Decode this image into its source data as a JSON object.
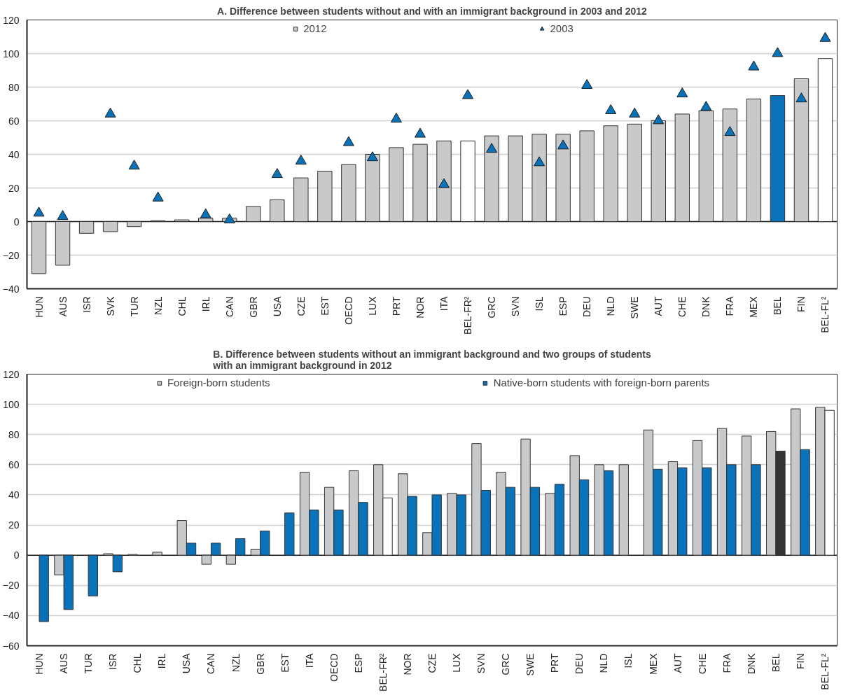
{
  "chart_data": [
    {
      "type": "bar",
      "title": "A. Difference between students without and with an immigrant background in 2003 and 2012",
      "categories": [
        "HUN",
        "AUS",
        "ISR",
        "SVK",
        "TUR",
        "NZL",
        "CHL",
        "IRL",
        "CAN",
        "GBR",
        "USA",
        "CZE",
        "EST",
        "OECD",
        "LUX",
        "PRT",
        "NOR",
        "ITA",
        "BEL-FR²",
        "GRC",
        "SVN",
        "ISL",
        "ESP",
        "DEU",
        "NLD",
        "SWE",
        "AUT",
        "CHE",
        "DNK",
        "FRA",
        "MEX",
        "BEL",
        "FIN",
        "BEL-FL²"
      ],
      "series": [
        {
          "name": "2012",
          "color": "#c8c9cb",
          "colors": [
            "#c8c9cb",
            "#c8c9cb",
            "#c8c9cb",
            "#c8c9cb",
            "#c8c9cb",
            "#c8c9cb",
            "#c8c9cb",
            "#c8c9cb",
            "#c8c9cb",
            "#c8c9cb",
            "#c8c9cb",
            "#c8c9cb",
            "#c8c9cb",
            "#c8c9cb",
            "#c8c9cb",
            "#c8c9cb",
            "#c8c9cb",
            "#c8c9cb",
            "#ffffff",
            "#c8c9cb",
            "#c8c9cb",
            "#c8c9cb",
            "#c8c9cb",
            "#c8c9cb",
            "#c8c9cb",
            "#c8c9cb",
            "#c8c9cb",
            "#c8c9cb",
            "#c8c9cb",
            "#c8c9cb",
            "#c8c9cb",
            "#0a72b8",
            "#c8c9cb",
            "#ffffff"
          ],
          "values": [
            -31,
            -26,
            -7,
            -6,
            -3,
            0.5,
            1,
            2,
            2,
            9,
            13,
            26,
            30,
            34,
            40,
            44,
            46,
            48,
            48,
            51,
            51,
            52,
            52,
            54,
            57,
            58,
            60,
            64,
            66,
            67,
            73,
            75,
            85,
            97
          ]
        },
        {
          "name": "2003",
          "type": "scatter",
          "marker": "triangle",
          "color": "#0a72b8",
          "values": [
            5,
            3,
            null,
            64,
            33,
            14,
            null,
            4,
            1,
            null,
            28,
            36,
            null,
            47,
            38,
            61,
            52,
            22,
            75,
            43,
            null,
            35,
            45,
            81,
            66,
            64,
            60,
            76,
            68,
            53,
            92,
            100,
            73,
            109
          ]
        }
      ],
      "ylim": [
        -40,
        120
      ],
      "yticks": [
        -40,
        -20,
        0,
        20,
        40,
        60,
        80,
        100,
        120
      ],
      "grid": "y",
      "legend": "top"
    },
    {
      "type": "bar",
      "title": "B. Difference between students without an immigrant background and two groups of students\nwith an immigrant background in 2012",
      "categories": [
        "HUN",
        "AUS",
        "TUR",
        "ISR",
        "CHL",
        "IRL",
        "USA",
        "CAN",
        "NZL",
        "GBR",
        "EST",
        "ITA",
        "OECD",
        "ESP",
        "BEL-FR²",
        "NOR",
        "CZE",
        "LUX",
        "SVN",
        "GRC",
        "SWE",
        "PRT",
        "DEU",
        "NLD",
        "ISL",
        "MEX",
        "AUT",
        "CHE",
        "FRA",
        "DNK",
        "BEL",
        "FIN",
        "BEL-FL²"
      ],
      "series": [
        {
          "name": "Foreign-born students",
          "color": "#c8c9cb",
          "values": [
            null,
            -13,
            null,
            1,
            0.5,
            2,
            23,
            -6,
            -6,
            4,
            null,
            55,
            45,
            56,
            60,
            54,
            15,
            41,
            74,
            55,
            77,
            41,
            66,
            60,
            60,
            83,
            62,
            76,
            84,
            79,
            82,
            97,
            98
          ]
        },
        {
          "name": "Native-born students with foreign-born parents",
          "color": "#0a72b8",
          "colors": [
            "#0a72b8",
            "#0a72b8",
            "#0a72b8",
            "#0a72b8",
            "#0a72b8",
            "#0a72b8",
            "#0a72b8",
            "#0a72b8",
            "#0a72b8",
            "#0a72b8",
            "#0a72b8",
            "#0a72b8",
            "#0a72b8",
            "#0a72b8",
            "#ffffff",
            "#0a72b8",
            "#0a72b8",
            "#0a72b8",
            "#0a72b8",
            "#0a72b8",
            "#0a72b8",
            "#0a72b8",
            "#0a72b8",
            "#0a72b8",
            "#0a72b8",
            "#0a72b8",
            "#0a72b8",
            "#0a72b8",
            "#0a72b8",
            "#0a72b8",
            "#333333",
            "#0a72b8",
            "#ffffff"
          ],
          "values": [
            -44,
            -36,
            -27,
            -11,
            null,
            null,
            8,
            8,
            11,
            16,
            28,
            30,
            30,
            35,
            38,
            39,
            40,
            40,
            43,
            45,
            45,
            47,
            50,
            56,
            null,
            57,
            58,
            58,
            60,
            60,
            69,
            70,
            96
          ]
        }
      ],
      "ylim": [
        -60,
        120
      ],
      "yticks": [
        -60,
        -40,
        -20,
        0,
        20,
        40,
        60,
        80,
        100,
        120
      ],
      "grid": "y",
      "legend": "top"
    }
  ]
}
